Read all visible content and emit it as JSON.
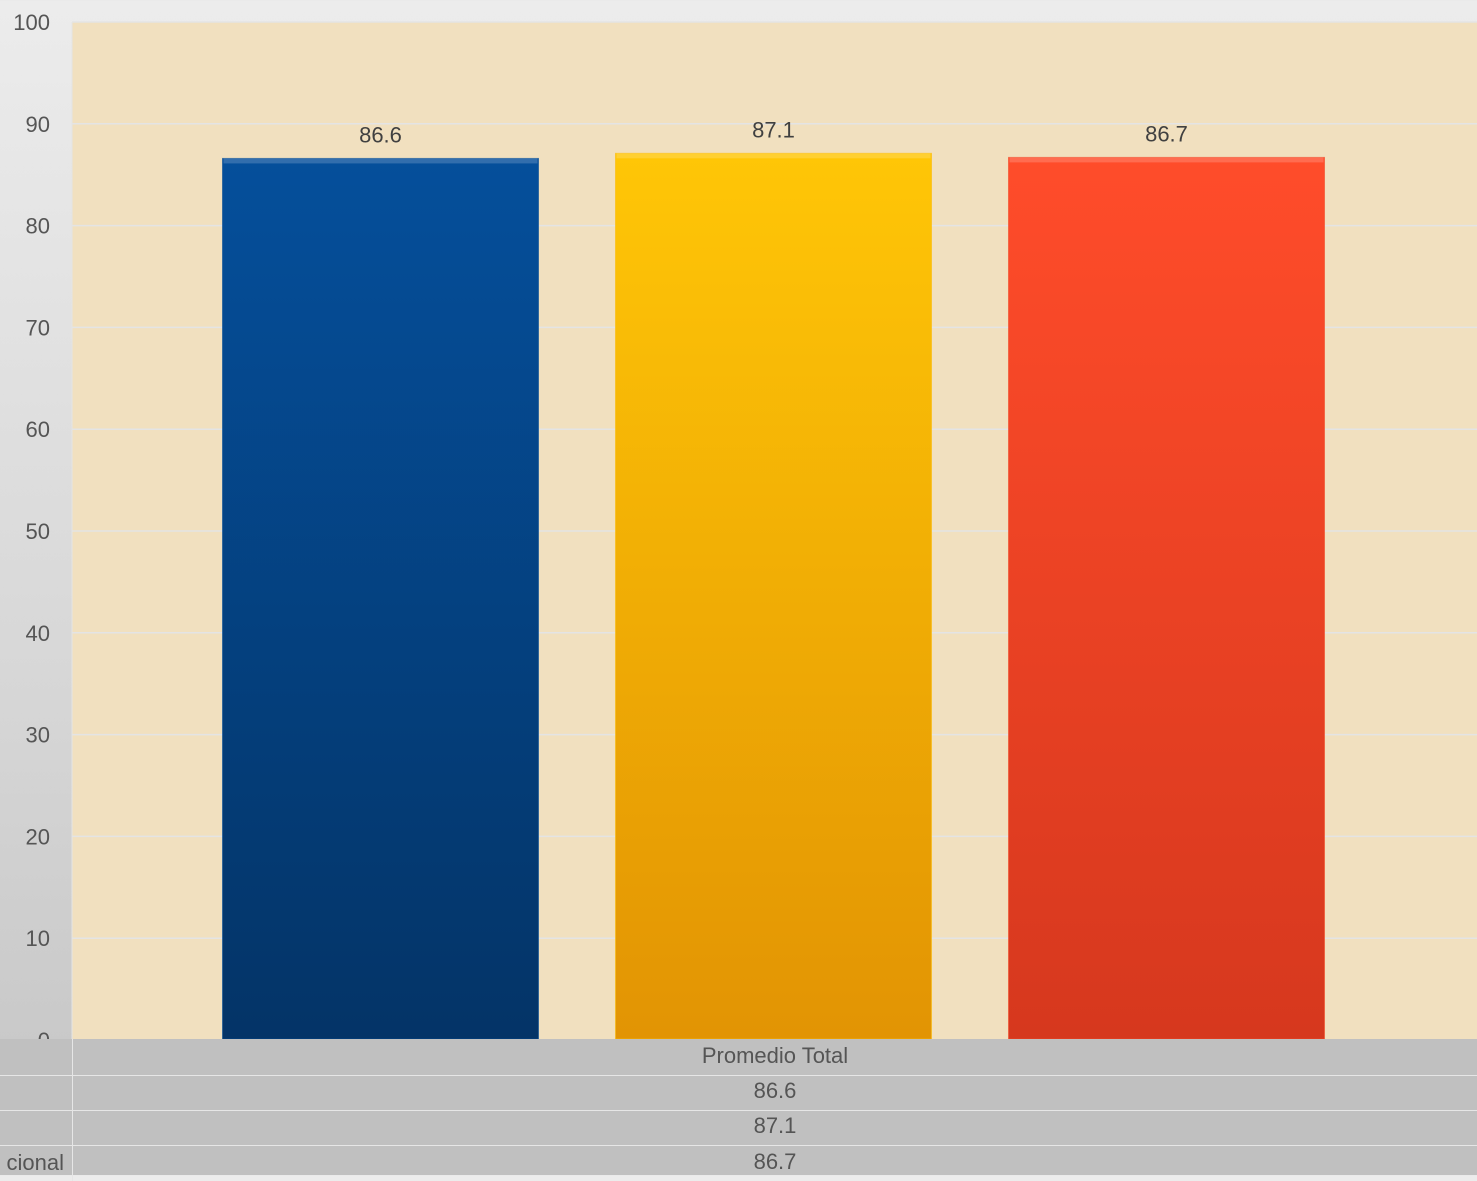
{
  "chart_data": {
    "type": "bar",
    "categories": [
      "Promedio Total"
    ],
    "series": [
      {
        "values": [
          86.6
        ],
        "color": "#054d96"
      },
      {
        "values": [
          87.1
        ],
        "color": "#fcbb06"
      },
      {
        "values": [
          86.7
        ],
        "color": "#f24a28"
      }
    ],
    "ylim": [
      0,
      100
    ],
    "yticks": [
      0,
      10,
      20,
      30,
      40,
      50,
      60,
      70,
      80,
      90,
      100
    ],
    "grid": true,
    "plot_background": "#f1e0bf",
    "data_labels": [
      "86.6",
      "87.1",
      "86.7"
    ]
  },
  "data_table": {
    "header": "Promedio Total",
    "rows": [
      {
        "label": "",
        "value": "86.6"
      },
      {
        "label": "",
        "value": "87.1"
      },
      {
        "label": "cional",
        "value": "86.7"
      }
    ]
  }
}
